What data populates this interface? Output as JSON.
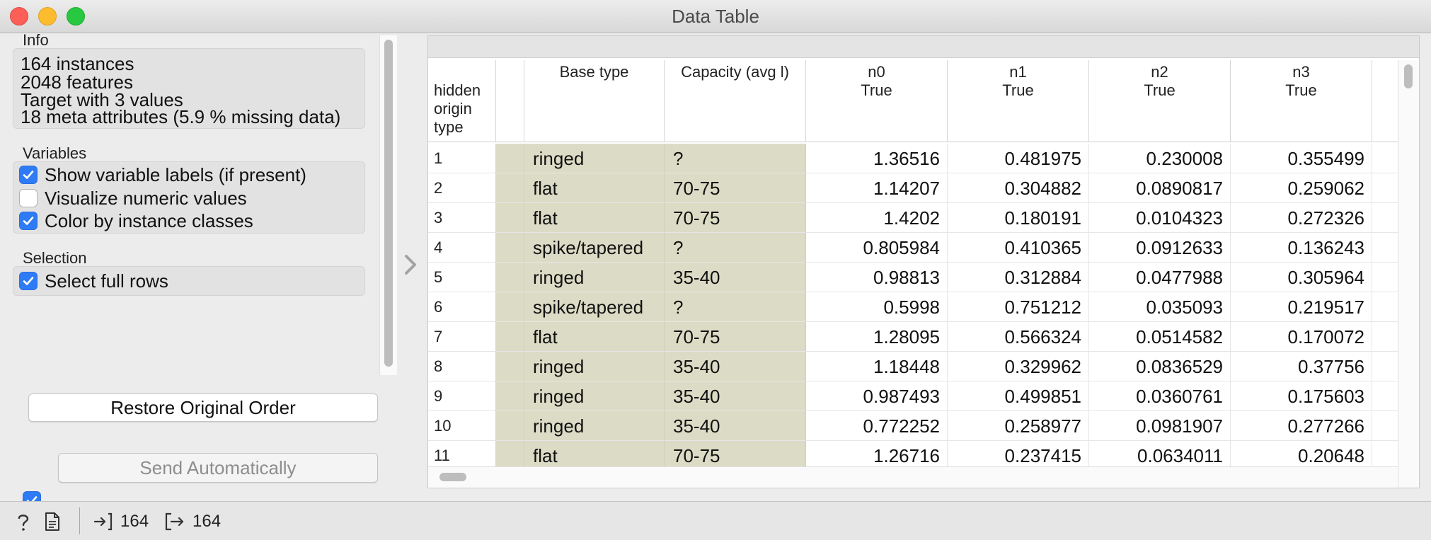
{
  "window": {
    "title": "Data Table"
  },
  "info": {
    "section_title": "Info",
    "lines": [
      "164 instances",
      "2048 features",
      "Target with 3 values",
      "18 meta attributes (5.9 % missing data)"
    ]
  },
  "variables": {
    "section_title": "Variables",
    "options": [
      {
        "label": "Show variable labels (if present)",
        "checked": true
      },
      {
        "label": "Visualize numeric values",
        "checked": false
      },
      {
        "label": "Color by instance classes",
        "checked": true
      }
    ]
  },
  "selection": {
    "section_title": "Selection",
    "options": [
      {
        "label": "Select full rows",
        "checked": true
      }
    ]
  },
  "buttons": {
    "restore_label": "Restore Original Order",
    "send_label": "Send Automatically",
    "send_auto_checked": true
  },
  "table": {
    "headers": {
      "index": "hidden\norigin\ntype",
      "base_type": "Base type",
      "capacity": "Capacity (avg l)",
      "numeric": [
        {
          "name": "n0",
          "label": "True"
        },
        {
          "name": "n1",
          "label": "True"
        },
        {
          "name": "n2",
          "label": "True"
        },
        {
          "name": "n3",
          "label": "True"
        }
      ]
    },
    "rows": [
      {
        "idx": "1",
        "base": "ringed",
        "cap": "?",
        "vals": [
          "1.36516",
          "0.481975",
          "0.230008",
          "0.355499"
        ]
      },
      {
        "idx": "2",
        "base": "flat",
        "cap": "70-75",
        "vals": [
          "1.14207",
          "0.304882",
          "0.0890817",
          "0.259062"
        ]
      },
      {
        "idx": "3",
        "base": "flat",
        "cap": "70-75",
        "vals": [
          "1.4202",
          "0.180191",
          "0.0104323",
          "0.272326"
        ]
      },
      {
        "idx": "4",
        "base": "spike/tapered",
        "cap": "?",
        "vals": [
          "0.805984",
          "0.410365",
          "0.0912633",
          "0.136243"
        ]
      },
      {
        "idx": "5",
        "base": "ringed",
        "cap": "35-40",
        "vals": [
          "0.98813",
          "0.312884",
          "0.0477988",
          "0.305964"
        ]
      },
      {
        "idx": "6",
        "base": "spike/tapered",
        "cap": "?",
        "vals": [
          "0.5998",
          "0.751212",
          "0.035093",
          "0.219517"
        ]
      },
      {
        "idx": "7",
        "base": "flat",
        "cap": "70-75",
        "vals": [
          "1.28095",
          "0.566324",
          "0.0514582",
          "0.170072"
        ]
      },
      {
        "idx": "8",
        "base": "ringed",
        "cap": "35-40",
        "vals": [
          "1.18448",
          "0.329962",
          "0.0836529",
          "0.37756"
        ]
      },
      {
        "idx": "9",
        "base": "ringed",
        "cap": "35-40",
        "vals": [
          "0.987493",
          "0.499851",
          "0.0360761",
          "0.175603"
        ]
      },
      {
        "idx": "10",
        "base": "ringed",
        "cap": "35-40",
        "vals": [
          "0.772252",
          "0.258977",
          "0.0981907",
          "0.277266"
        ]
      },
      {
        "idx": "11",
        "base": "flat",
        "cap": "70-75",
        "vals": [
          "1.26716",
          "0.237415",
          "0.0634011",
          "0.20648"
        ]
      }
    ]
  },
  "status": {
    "input_count": "164",
    "output_count": "164"
  },
  "colors": {
    "accent": "#2f7bf6",
    "meta_column_bg": "#dcdcc6"
  }
}
